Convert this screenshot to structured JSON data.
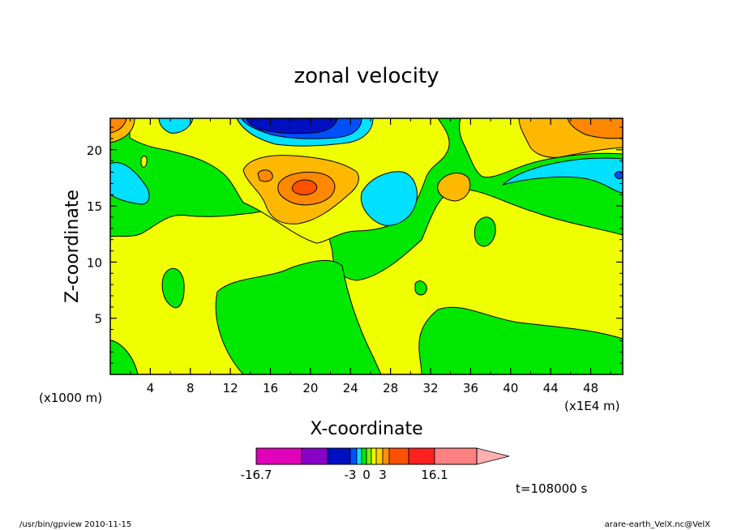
{
  "chart_data": {
    "type": "heatmap",
    "title": "zonal velocity",
    "xlabel": "X-coordinate",
    "ylabel": "Z-coordinate",
    "x_unit_left": "(x1000 m)",
    "x_unit_right": "(x1E4 m)",
    "xlim": [
      0,
      51.2
    ],
    "ylim": [
      0,
      22.8
    ],
    "x_ticks": [
      "4",
      "8",
      "12",
      "16",
      "20",
      "24",
      "28",
      "32",
      "36",
      "40",
      "44",
      "48"
    ],
    "y_ticks": [
      "5",
      "10",
      "15",
      "20"
    ],
    "colorbar": {
      "labels": [
        "-16.7",
        "-3",
        "0",
        "3",
        "16.1"
      ],
      "colors": [
        "#e000b8",
        "#8800c8",
        "#0010c0",
        "#0050ff",
        "#00e0ff",
        "#00e800",
        "#80f000",
        "#f0ff00",
        "#ffd000",
        "#ff9000",
        "#ff5000",
        "#ff2020",
        "#ff8080",
        "#ffb0b0"
      ]
    },
    "palette": {
      "magenta": "#e000b8",
      "purple": "#8800c8",
      "darkblue": "#0010c0",
      "blue": "#0050ff",
      "cyan": "#00e0ff",
      "green": "#00e800",
      "yellow": "#f0ff00",
      "gold": "#ffb800",
      "orange": "#ff8800",
      "red": "#ff3000"
    },
    "time_label": "t=108000 s"
  },
  "footer": {
    "left": "/usr/bin/gpview  2010-11-15",
    "right": "arare-earth_VelX.nc@VelX"
  }
}
